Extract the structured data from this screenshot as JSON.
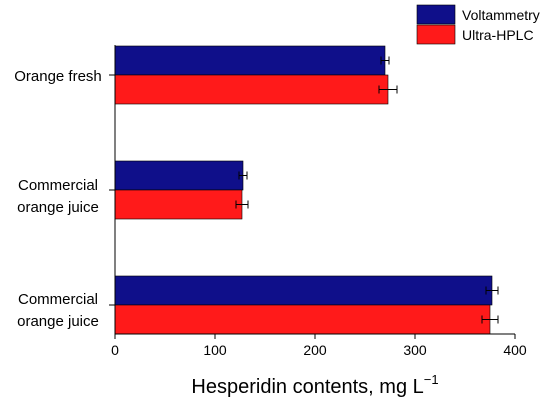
{
  "chart_data": {
    "type": "bar",
    "orientation": "horizontal",
    "categories": [
      [
        "Orange fresh"
      ],
      [
        "Commercial",
        "orange juice"
      ],
      [
        "Commercial",
        "orange juice"
      ]
    ],
    "series": [
      {
        "name": "Voltammetry",
        "color": "#0f0f8a",
        "values": [
          270,
          128,
          377
        ],
        "errors": [
          4,
          4,
          6
        ]
      },
      {
        "name": "Ultra-HPLC",
        "color": "#ff1a1a",
        "values": [
          273,
          127,
          375
        ],
        "errors": [
          9,
          6,
          8
        ]
      }
    ],
    "xlabel": "Hesperidin contents, mg L",
    "xlabel_superscript": "−1",
    "xlim": [
      0,
      400
    ],
    "xticks": [
      0,
      100,
      200,
      300,
      400
    ],
    "grid": false,
    "legend_position": "top-right"
  }
}
